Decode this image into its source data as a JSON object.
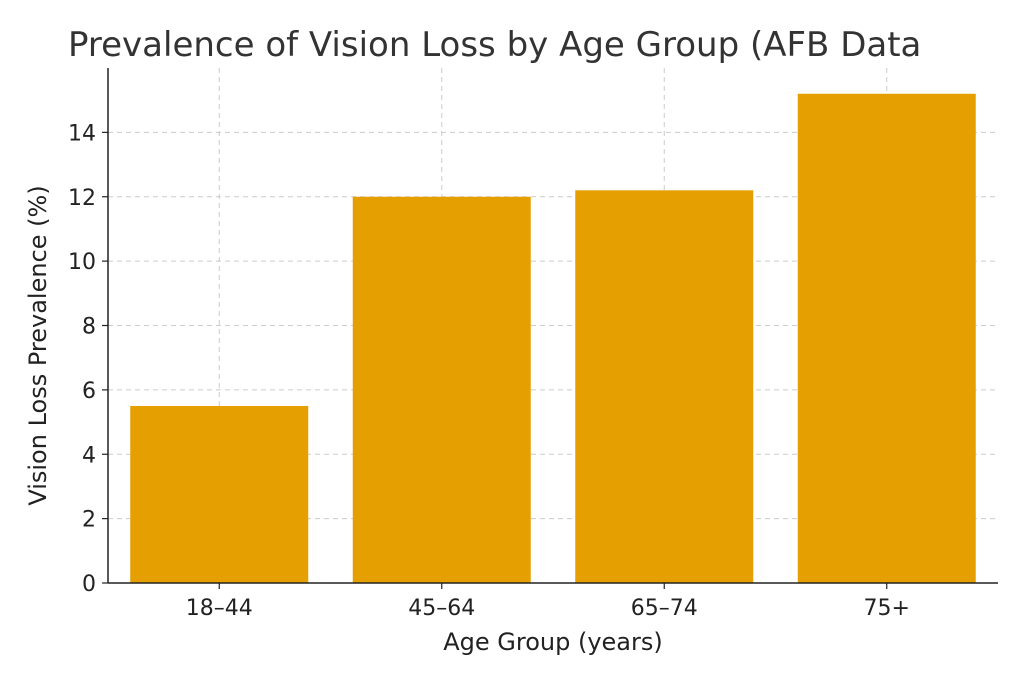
{
  "chart_data": {
    "type": "bar",
    "title": "Prevalence of Vision Loss by Age Group (AFB Data",
    "xlabel": "Age Group (years)",
    "ylabel": "Vision Loss Prevalence (%)",
    "categories": [
      "18–44",
      "45–64",
      "65–74",
      "75+"
    ],
    "values": [
      5.5,
      12.0,
      12.2,
      15.2
    ],
    "ylim": [
      0,
      16
    ],
    "yticks": [
      0,
      2,
      4,
      6,
      8,
      10,
      12,
      14
    ],
    "grid": true,
    "bar_color": "#E69F00"
  }
}
